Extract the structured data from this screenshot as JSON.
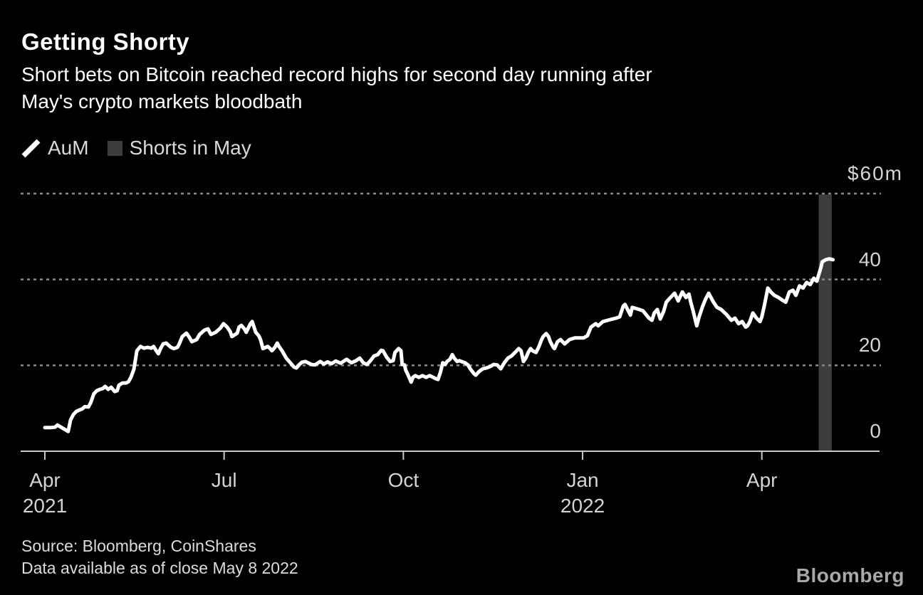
{
  "header": {
    "title": "Getting Shorty",
    "subtitle_line1": "Short bets on Bitcoin reached record highs for second day running after",
    "subtitle_line2": "May's crypto markets bloodbath"
  },
  "legend": {
    "items": [
      {
        "label": "AuM",
        "marker": "diagonal-line",
        "color": "#ffffff"
      },
      {
        "label": "Shorts in May",
        "marker": "square",
        "color": "#3d3d3d"
      }
    ]
  },
  "footer": {
    "source_line1": "Source: Bloomberg, CoinShares",
    "source_line2": "Data available as of close May 8 2022",
    "logo": "Bloomberg"
  },
  "colors": {
    "background": "#000000",
    "line": "#ffffff",
    "bar": "#3d3d3d",
    "grid": "#8a8a8a",
    "axis": "#c9c9c9",
    "text_primary": "#ffffff",
    "text_secondary": "#d4d4d4"
  },
  "chart_data": {
    "type": "line",
    "title": "Getting Shorty",
    "subtitle": "Short bets on Bitcoin reached record highs for second day running after May's crypto markets bloodbath",
    "unit": "$ millions",
    "x_axis": {
      "unit": "months since 2021-04-01",
      "xlim": [
        -0.405,
        13.97
      ],
      "ticks": [
        {
          "t": 0,
          "label": "Apr",
          "year": "2021"
        },
        {
          "t": 3,
          "label": "Jul"
        },
        {
          "t": 6,
          "label": "Oct"
        },
        {
          "t": 9,
          "label": "Jan",
          "year": "2022"
        },
        {
          "t": 12,
          "label": "Apr"
        }
      ]
    },
    "y_axis": {
      "ylim": [
        0,
        60
      ],
      "gridlines_dashed": [
        20,
        40,
        60
      ],
      "labels": [
        {
          "v": 60,
          "label": "$60m"
        },
        {
          "v": 40,
          "label": "40"
        },
        {
          "v": 20,
          "label": "20"
        },
        {
          "v": 0,
          "label": "0"
        }
      ]
    },
    "series": [
      {
        "name": "AuM",
        "type": "line",
        "color": "#ffffff",
        "points": [
          [
            0.0,
            5.5
          ],
          [
            0.1,
            5.5
          ],
          [
            0.17,
            5.6
          ],
          [
            0.21,
            6.1
          ],
          [
            0.27,
            5.6
          ],
          [
            0.33,
            5.1
          ],
          [
            0.39,
            4.6
          ],
          [
            0.43,
            7.3
          ],
          [
            0.48,
            8.6
          ],
          [
            0.53,
            9.3
          ],
          [
            0.58,
            9.6
          ],
          [
            0.63,
            9.9
          ],
          [
            0.67,
            10.4
          ],
          [
            0.73,
            10.3
          ],
          [
            0.77,
            11.4
          ],
          [
            0.82,
            13.4
          ],
          [
            0.87,
            14.1
          ],
          [
            0.92,
            14.4
          ],
          [
            0.97,
            14.6
          ],
          [
            1.01,
            15.1
          ],
          [
            1.06,
            14.4
          ],
          [
            1.11,
            14.9
          ],
          [
            1.17,
            13.9
          ],
          [
            1.21,
            14.1
          ],
          [
            1.24,
            15.4
          ],
          [
            1.3,
            15.9
          ],
          [
            1.36,
            15.9
          ],
          [
            1.4,
            16.2
          ],
          [
            1.44,
            17.2
          ],
          [
            1.49,
            19.1
          ],
          [
            1.54,
            23.4
          ],
          [
            1.6,
            24.4
          ],
          [
            1.66,
            24.0
          ],
          [
            1.72,
            24.2
          ],
          [
            1.78,
            24.0
          ],
          [
            1.82,
            24.4
          ],
          [
            1.86,
            23.5
          ],
          [
            1.9,
            22.7
          ],
          [
            1.94,
            24.0
          ],
          [
            1.98,
            25.0
          ],
          [
            2.03,
            25.2
          ],
          [
            2.11,
            24.2
          ],
          [
            2.16,
            23.9
          ],
          [
            2.22,
            24.2
          ],
          [
            2.25,
            25.0
          ],
          [
            2.3,
            26.7
          ],
          [
            2.37,
            27.5
          ],
          [
            2.42,
            26.5
          ],
          [
            2.46,
            25.5
          ],
          [
            2.54,
            26.0
          ],
          [
            2.59,
            27.2
          ],
          [
            2.67,
            28.2
          ],
          [
            2.73,
            28.5
          ],
          [
            2.78,
            27.2
          ],
          [
            2.86,
            27.7
          ],
          [
            2.94,
            28.7
          ],
          [
            2.99,
            29.7
          ],
          [
            3.05,
            28.9
          ],
          [
            3.1,
            27.9
          ],
          [
            3.13,
            26.7
          ],
          [
            3.22,
            27.5
          ],
          [
            3.25,
            28.9
          ],
          [
            3.29,
            29.3
          ],
          [
            3.34,
            28.5
          ],
          [
            3.37,
            27.7
          ],
          [
            3.44,
            29.7
          ],
          [
            3.47,
            30.2
          ],
          [
            3.53,
            27.7
          ],
          [
            3.58,
            26.9
          ],
          [
            3.61,
            26.0
          ],
          [
            3.65,
            23.9
          ],
          [
            3.73,
            24.4
          ],
          [
            3.77,
            23.9
          ],
          [
            3.8,
            23.4
          ],
          [
            3.85,
            24.2
          ],
          [
            3.89,
            25.2
          ],
          [
            3.92,
            24.4
          ],
          [
            3.97,
            23.4
          ],
          [
            4.04,
            21.7
          ],
          [
            4.09,
            20.9
          ],
          [
            4.17,
            19.6
          ],
          [
            4.21,
            19.4
          ],
          [
            4.26,
            20.2
          ],
          [
            4.3,
            20.7
          ],
          [
            4.36,
            20.9
          ],
          [
            4.46,
            20.2
          ],
          [
            4.52,
            20.1
          ],
          [
            4.61,
            20.9
          ],
          [
            4.67,
            20.3
          ],
          [
            4.73,
            20.8
          ],
          [
            4.8,
            20.4
          ],
          [
            4.87,
            21.0
          ],
          [
            4.95,
            20.5
          ],
          [
            5.05,
            21.4
          ],
          [
            5.13,
            20.6
          ],
          [
            5.21,
            21.1
          ],
          [
            5.27,
            21.7
          ],
          [
            5.33,
            20.6
          ],
          [
            5.39,
            20.2
          ],
          [
            5.45,
            21.1
          ],
          [
            5.51,
            22.2
          ],
          [
            5.57,
            22.5
          ],
          [
            5.63,
            23.5
          ],
          [
            5.66,
            23.4
          ],
          [
            5.72,
            21.9
          ],
          [
            5.78,
            20.9
          ],
          [
            5.83,
            21.1
          ],
          [
            5.86,
            23.0
          ],
          [
            5.92,
            23.9
          ],
          [
            5.96,
            23.4
          ],
          [
            5.98,
            20.2
          ],
          [
            6.02,
            20.1
          ],
          [
            6.04,
            18.9
          ],
          [
            6.08,
            17.7
          ],
          [
            6.13,
            16.1
          ],
          [
            6.16,
            17.2
          ],
          [
            6.2,
            17.6
          ],
          [
            6.26,
            17.2
          ],
          [
            6.32,
            17.6
          ],
          [
            6.38,
            17.2
          ],
          [
            6.44,
            17.6
          ],
          [
            6.5,
            17.2
          ],
          [
            6.54,
            16.9
          ],
          [
            6.58,
            16.7
          ],
          [
            6.62,
            18.4
          ],
          [
            6.66,
            20.6
          ],
          [
            6.7,
            20.2
          ],
          [
            6.73,
            20.9
          ],
          [
            6.78,
            21.4
          ],
          [
            6.82,
            22.5
          ],
          [
            6.85,
            21.7
          ],
          [
            6.9,
            20.9
          ],
          [
            6.94,
            21.1
          ],
          [
            6.97,
            20.9
          ],
          [
            7.03,
            20.6
          ],
          [
            7.08,
            20.1
          ],
          [
            7.12,
            19.2
          ],
          [
            7.18,
            18.1
          ],
          [
            7.21,
            17.7
          ],
          [
            7.27,
            18.6
          ],
          [
            7.33,
            19.2
          ],
          [
            7.39,
            19.4
          ],
          [
            7.45,
            19.7
          ],
          [
            7.51,
            20.2
          ],
          [
            7.57,
            20.1
          ],
          [
            7.63,
            19.2
          ],
          [
            7.69,
            20.6
          ],
          [
            7.75,
            21.7
          ],
          [
            7.81,
            22.2
          ],
          [
            7.87,
            23.0
          ],
          [
            7.93,
            23.9
          ],
          [
            7.97,
            23.4
          ],
          [
            8.01,
            20.9
          ],
          [
            8.05,
            21.7
          ],
          [
            8.09,
            23.0
          ],
          [
            8.13,
            23.9
          ],
          [
            8.16,
            23.4
          ],
          [
            8.22,
            23.0
          ],
          [
            8.27,
            24.4
          ],
          [
            8.31,
            25.9
          ],
          [
            8.34,
            26.7
          ],
          [
            8.39,
            27.4
          ],
          [
            8.43,
            26.7
          ],
          [
            8.46,
            25.5
          ],
          [
            8.51,
            24.2
          ],
          [
            8.53,
            23.9
          ],
          [
            8.58,
            25.5
          ],
          [
            8.63,
            26.0
          ],
          [
            8.7,
            25.0
          ],
          [
            8.78,
            26.0
          ],
          [
            8.87,
            26.4
          ],
          [
            8.94,
            26.4
          ],
          [
            9.02,
            26.4
          ],
          [
            9.08,
            26.9
          ],
          [
            9.14,
            28.9
          ],
          [
            9.22,
            29.7
          ],
          [
            9.26,
            29.2
          ],
          [
            9.34,
            30.2
          ],
          [
            9.42,
            30.5
          ],
          [
            9.5,
            30.8
          ],
          [
            9.56,
            31.0
          ],
          [
            9.62,
            31.3
          ],
          [
            9.68,
            33.8
          ],
          [
            9.71,
            34.2
          ],
          [
            9.8,
            31.7
          ],
          [
            9.83,
            33.5
          ],
          [
            9.95,
            33.0
          ],
          [
            10.01,
            32.7
          ],
          [
            10.11,
            31.0
          ],
          [
            10.16,
            30.5
          ],
          [
            10.2,
            32.2
          ],
          [
            10.25,
            33.0
          ],
          [
            10.3,
            30.8
          ],
          [
            10.36,
            32.7
          ],
          [
            10.4,
            34.7
          ],
          [
            10.45,
            35.5
          ],
          [
            10.54,
            36.8
          ],
          [
            10.6,
            35.0
          ],
          [
            10.67,
            37.1
          ],
          [
            10.73,
            35.8
          ],
          [
            10.78,
            36.6
          ],
          [
            10.81,
            34.7
          ],
          [
            10.85,
            32.7
          ],
          [
            10.91,
            29.2
          ],
          [
            10.95,
            31.3
          ],
          [
            11.01,
            33.8
          ],
          [
            11.06,
            35.5
          ],
          [
            11.11,
            36.8
          ],
          [
            11.14,
            36.0
          ],
          [
            11.19,
            34.7
          ],
          [
            11.25,
            33.5
          ],
          [
            11.32,
            33.0
          ],
          [
            11.41,
            31.8
          ],
          [
            11.49,
            30.5
          ],
          [
            11.55,
            31.0
          ],
          [
            11.61,
            29.7
          ],
          [
            11.67,
            30.2
          ],
          [
            11.73,
            28.9
          ],
          [
            11.76,
            29.2
          ],
          [
            11.8,
            30.2
          ],
          [
            11.85,
            32.2
          ],
          [
            11.91,
            31.0
          ],
          [
            11.97,
            30.2
          ],
          [
            12.0,
            31.3
          ],
          [
            12.04,
            33.8
          ],
          [
            12.1,
            38.0
          ],
          [
            12.15,
            37.1
          ],
          [
            12.21,
            36.3
          ],
          [
            12.28,
            35.8
          ],
          [
            12.34,
            35.2
          ],
          [
            12.4,
            34.7
          ],
          [
            12.46,
            37.1
          ],
          [
            12.52,
            37.5
          ],
          [
            12.57,
            36.3
          ],
          [
            12.63,
            38.5
          ],
          [
            12.69,
            38.0
          ],
          [
            12.75,
            39.3
          ],
          [
            12.81,
            38.8
          ],
          [
            12.87,
            40.3
          ],
          [
            12.92,
            39.6
          ],
          [
            12.95,
            41.0
          ],
          [
            12.99,
            42.9
          ],
          [
            13.01,
            44.1
          ],
          [
            13.07,
            44.6
          ],
          [
            13.13,
            44.8
          ],
          [
            13.19,
            44.6
          ]
        ]
      },
      {
        "name": "Shorts in May",
        "type": "bar",
        "color": "#3d3d3d",
        "bar_t_start": 12.95,
        "bar_t_end": 13.17,
        "value": 59.8
      }
    ]
  }
}
